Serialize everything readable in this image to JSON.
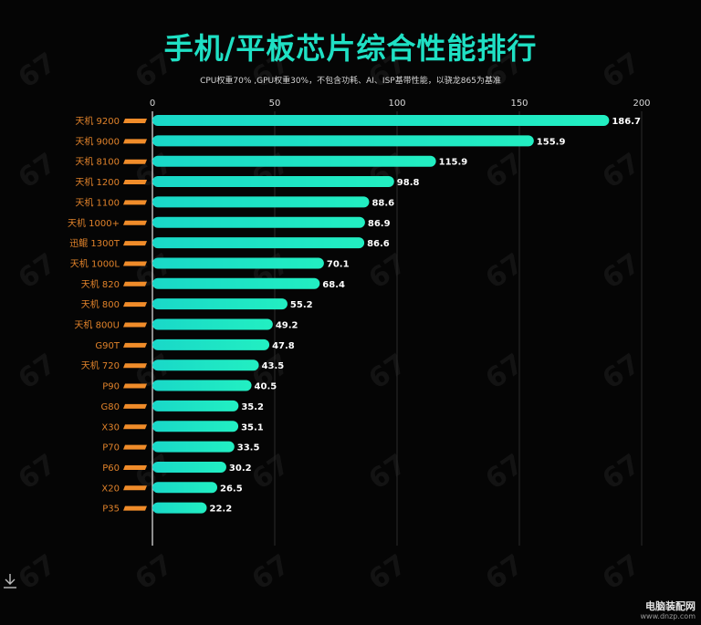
{
  "title": "手机/平板芯片综合性能排行",
  "subtitle": "CPU权重70% ,GPU权重30%，不包含功耗、AI、ISP基带性能，以骁龙865为基准",
  "footer": {
    "site_name": "电脑装配网",
    "site_url": "www.dnzp.com"
  },
  "colors": {
    "bar_start": "#19d8c8",
    "bar_end": "#22efc2",
    "label": "#e0822a",
    "badge": "#f08c2a",
    "title": "#1fe0c4"
  },
  "icons": {
    "download": "download-icon",
    "badge": "chip-badge-icon"
  },
  "chart_data": {
    "type": "bar",
    "orientation": "horizontal",
    "title": "手机/平板芯片综合性能排行",
    "subtitle": "CPU权重70% ,GPU权重30%，不包含功耗、AI、ISP基带性能，以骁龙865为基准",
    "xlabel": "",
    "ylabel": "",
    "xlim": [
      0,
      200
    ],
    "xticks": [
      0,
      50,
      100,
      150,
      200
    ],
    "grid": true,
    "categories": [
      "天机 9200",
      "天机 9000",
      "天机 8100",
      "天机 1200",
      "天机 1100",
      "天机 1000+",
      "迅鲲 1300T",
      "天机 1000L",
      "天机 820",
      "天机 800",
      "天机 800U",
      "G90T",
      "天机 720",
      "P90",
      "G80",
      "X30",
      "P70",
      "P60",
      "X20",
      "P35"
    ],
    "values": [
      186.7,
      155.9,
      115.9,
      98.8,
      88.6,
      86.9,
      86.6,
      70.1,
      68.4,
      55.2,
      49.2,
      47.8,
      43.5,
      40.5,
      35.2,
      35.1,
      33.5,
      30.2,
      26.5,
      22.2
    ],
    "value_labels": [
      "186.7",
      "155.9",
      "115.9",
      "98.8",
      "88.6",
      "86.9",
      "86.6",
      "70.1",
      "68.4",
      "55.2",
      "49.2",
      "47.8",
      "43.5",
      "40.5",
      "35.2",
      "35.1",
      "33.5",
      "30.2",
      "26.5",
      "22.2"
    ]
  }
}
